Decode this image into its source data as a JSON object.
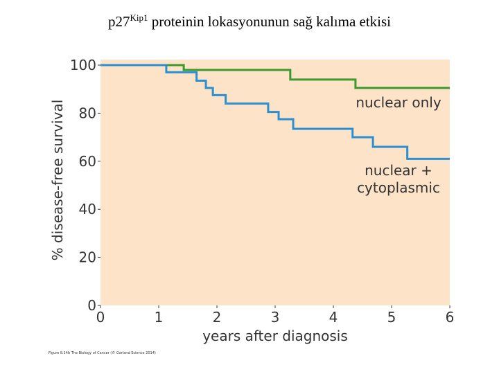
{
  "chart_data": {
    "type": "step",
    "title": {
      "prefix": "p27",
      "superscript": "Kip1",
      "rest": " proteinin lokasyonunun sağ kalıma etkisi"
    },
    "xlabel": "years after diagnosis",
    "ylabel": "% disease-free survival",
    "footnote": "Figure 8.14b The Biology of Cancer (© Garland Science 2014)",
    "xlim": [
      0,
      6
    ],
    "xticks": [
      0,
      1,
      2,
      3,
      4,
      5,
      6
    ],
    "ylim": [
      0,
      100
    ],
    "yticks": [
      0,
      20,
      40,
      60,
      80,
      100
    ],
    "background": "#fde3c8",
    "series": [
      {
        "name": "nuclear only",
        "color": "#3c9a2c",
        "x": [
          0,
          1.43,
          3.26,
          4.38,
          6
        ],
        "values": [
          100,
          98,
          94,
          90.5,
          90.5
        ]
      },
      {
        "name": "nuclear + cytoplasmic",
        "color": "#2b8fd0",
        "x": [
          0,
          1.13,
          1.65,
          1.81,
          1.93,
          2.15,
          2.88,
          3.06,
          3.31,
          4.33,
          4.68,
          5.27,
          6
        ],
        "values": [
          100,
          97,
          93.5,
          90.5,
          87.5,
          84,
          80.5,
          77.5,
          73.5,
          70,
          66,
          61,
          61
        ]
      }
    ]
  }
}
